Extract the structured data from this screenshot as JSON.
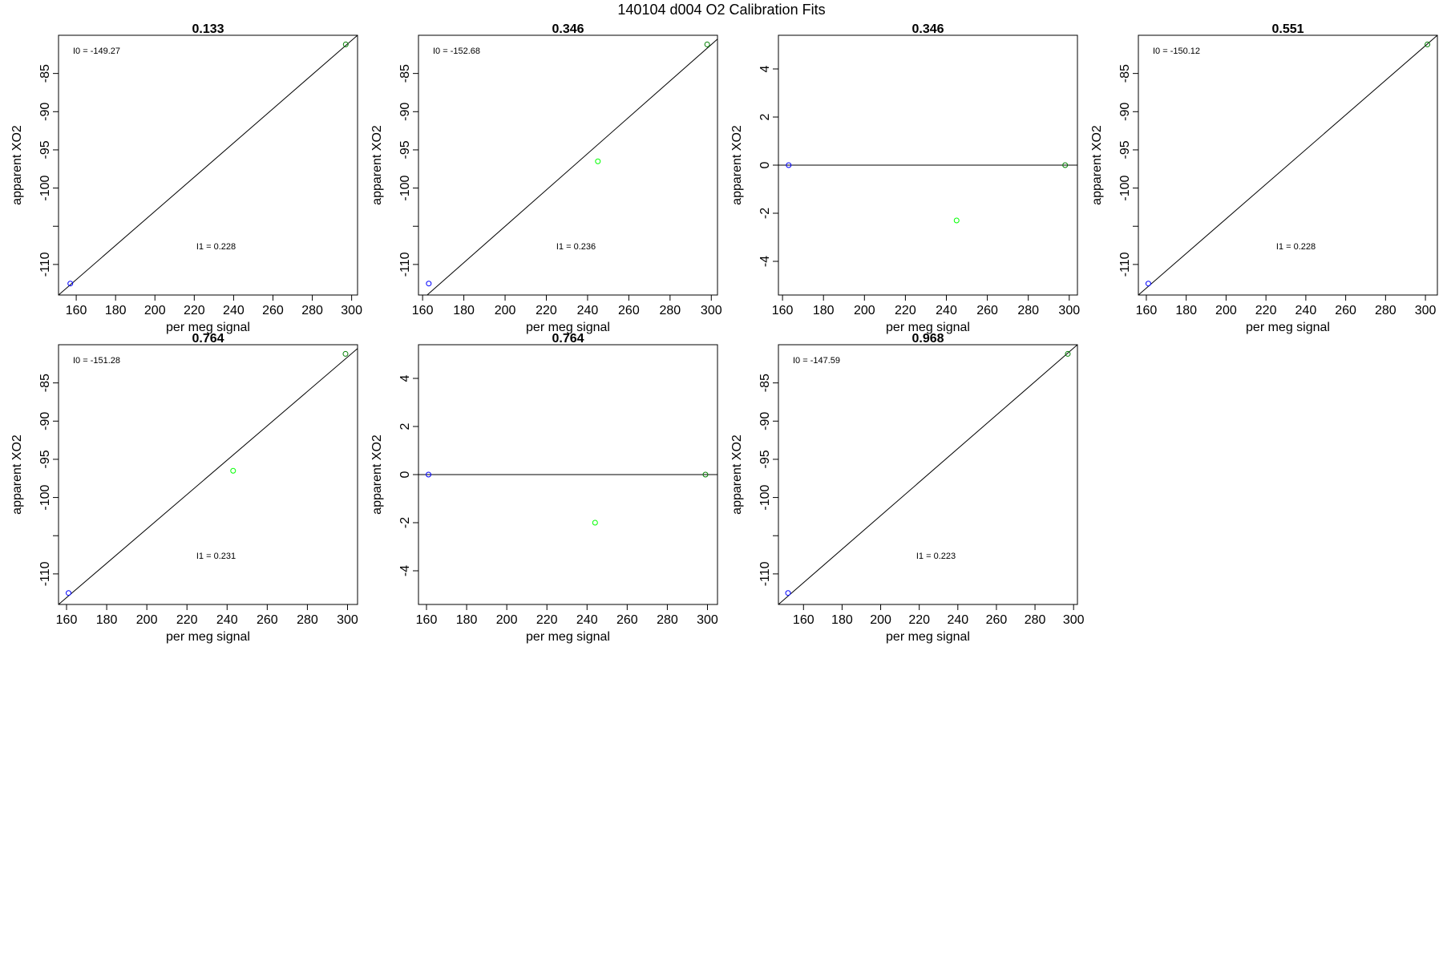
{
  "figure": {
    "title": "140104   d004   O2 Calibration Fits",
    "colors": {
      "line": "#000000",
      "point_blue": "#0000ff",
      "point_green_dark": "#008000",
      "point_green_light": "#00ff00"
    }
  },
  "chart_data": [
    {
      "type": "scatter",
      "title": "0.133",
      "xlabel": "per meg signal",
      "ylabel": "apparent XO2",
      "xlim": [
        151,
        303
      ],
      "ylim": [
        -114,
        -80
      ],
      "xticks": [
        160,
        180,
        200,
        220,
        240,
        260,
        280,
        300
      ],
      "yticks": [
        -85,
        -90,
        -95,
        -100,
        -105,
        -110
      ],
      "yticklabels": [
        "-85",
        "-90",
        "-95",
        "-100",
        "",
        "-110"
      ],
      "points": [
        {
          "x": 157,
          "y": -112.5,
          "color": "#0000ff"
        },
        {
          "x": 297,
          "y": -81.2,
          "color": "#008000"
        }
      ],
      "fit_line": [
        [
          151,
          -114
        ],
        [
          303,
          -80
        ]
      ],
      "annotations": [
        {
          "text": "I0 =  -149.27",
          "position": "top-left"
        },
        {
          "text": "I1 =  0.228",
          "position": "bottom-center"
        }
      ]
    },
    {
      "type": "scatter",
      "title": "0.346",
      "xlabel": "per meg signal",
      "ylabel": "apparent XO2",
      "xlim": [
        158,
        303
      ],
      "ylim": [
        -114,
        -80
      ],
      "xticks": [
        160,
        180,
        200,
        220,
        240,
        260,
        280,
        300
      ],
      "yticks": [
        -85,
        -90,
        -95,
        -100,
        -105,
        -110
      ],
      "yticklabels": [
        "-85",
        "-90",
        "-95",
        "-100",
        "",
        "-110"
      ],
      "points": [
        {
          "x": 163,
          "y": -112.5,
          "color": "#0000ff"
        },
        {
          "x": 245,
          "y": -96.5,
          "color": "#00ff00"
        },
        {
          "x": 298,
          "y": -81.2,
          "color": "#008000"
        }
      ],
      "fit_line": [
        [
          158,
          -115
        ],
        [
          303,
          -80.5
        ]
      ],
      "annotations": [
        {
          "text": "I0 =  -152.68",
          "position": "top-left"
        },
        {
          "text": "I1 =  0.236",
          "position": "bottom-center"
        }
      ]
    },
    {
      "type": "scatter",
      "title": "0.346",
      "xlabel": "per meg signal",
      "ylabel": "apparent XO2",
      "xlim": [
        158,
        304
      ],
      "ylim": [
        -5.4,
        5.4
      ],
      "xticks": [
        160,
        180,
        200,
        220,
        240,
        260,
        280,
        300
      ],
      "yticks": [
        4,
        2,
        0,
        -2,
        -4
      ],
      "yticklabels": [
        "4",
        "2",
        "0",
        "-2",
        "-4"
      ],
      "points": [
        {
          "x": 163,
          "y": 0,
          "color": "#0000ff"
        },
        {
          "x": 245,
          "y": -2.3,
          "color": "#00ff00"
        },
        {
          "x": 298,
          "y": 0,
          "color": "#008000"
        }
      ],
      "fit_line": [
        [
          158,
          0
        ],
        [
          304,
          0
        ]
      ],
      "annotations": []
    },
    {
      "type": "scatter",
      "title": "0.551",
      "xlabel": "per meg signal",
      "ylabel": "apparent XO2",
      "xlim": [
        156,
        306
      ],
      "ylim": [
        -114,
        -80
      ],
      "xticks": [
        160,
        180,
        200,
        220,
        240,
        260,
        280,
        300
      ],
      "yticks": [
        -85,
        -90,
        -95,
        -100,
        -105,
        -110
      ],
      "yticklabels": [
        "-85",
        "-90",
        "-95",
        "-100",
        "",
        "-110"
      ],
      "points": [
        {
          "x": 161,
          "y": -112.5,
          "color": "#0000ff"
        },
        {
          "x": 301,
          "y": -81.2,
          "color": "#008000"
        }
      ],
      "fit_line": [
        [
          156,
          -114
        ],
        [
          306,
          -80
        ]
      ],
      "annotations": [
        {
          "text": "I0 =  -150.12",
          "position": "top-left"
        },
        {
          "text": "I1 =  0.228",
          "position": "bottom-center"
        }
      ]
    },
    {
      "type": "scatter",
      "title": "0.764",
      "xlabel": "per meg signal",
      "ylabel": "apparent XO2",
      "xlim": [
        156,
        305
      ],
      "ylim": [
        -114,
        -80
      ],
      "xticks": [
        160,
        180,
        200,
        220,
        240,
        260,
        280,
        300
      ],
      "yticks": [
        -85,
        -90,
        -95,
        -100,
        -105,
        -110
      ],
      "yticklabels": [
        "-85",
        "-90",
        "-95",
        "-100",
        "",
        "-110"
      ],
      "points": [
        {
          "x": 161,
          "y": -112.5,
          "color": "#0000ff"
        },
        {
          "x": 243,
          "y": -96.5,
          "color": "#00ff00"
        },
        {
          "x": 299,
          "y": -81.2,
          "color": "#008000"
        }
      ],
      "fit_line": [
        [
          156,
          -114
        ],
        [
          305,
          -80.5
        ]
      ],
      "annotations": [
        {
          "text": "I0 =  -151.28",
          "position": "top-left"
        },
        {
          "text": "I1 =  0.231",
          "position": "bottom-center"
        }
      ]
    },
    {
      "type": "scatter",
      "title": "0.764",
      "xlabel": "per meg signal",
      "ylabel": "apparent XO2",
      "xlim": [
        156,
        305
      ],
      "ylim": [
        -5.4,
        5.4
      ],
      "xticks": [
        160,
        180,
        200,
        220,
        240,
        260,
        280,
        300
      ],
      "yticks": [
        4,
        2,
        0,
        -2,
        -4
      ],
      "yticklabels": [
        "4",
        "2",
        "0",
        "-2",
        "-4"
      ],
      "points": [
        {
          "x": 161,
          "y": 0,
          "color": "#0000ff"
        },
        {
          "x": 244,
          "y": -2.0,
          "color": "#00ff00"
        },
        {
          "x": 299,
          "y": 0,
          "color": "#008000"
        }
      ],
      "fit_line": [
        [
          156,
          0
        ],
        [
          305,
          0
        ]
      ],
      "annotations": []
    },
    {
      "type": "scatter",
      "title": "0.968",
      "xlabel": "per meg signal",
      "ylabel": "apparent XO2",
      "xlim": [
        147,
        302
      ],
      "ylim": [
        -114,
        -80
      ],
      "xticks": [
        160,
        180,
        200,
        220,
        240,
        260,
        280,
        300
      ],
      "yticks": [
        -85,
        -90,
        -95,
        -100,
        -105,
        -110
      ],
      "yticklabels": [
        "-85",
        "-90",
        "-95",
        "-100",
        "",
        "-110"
      ],
      "points": [
        {
          "x": 152,
          "y": -112.5,
          "color": "#0000ff"
        },
        {
          "x": 297,
          "y": -81.2,
          "color": "#008000"
        }
      ],
      "fit_line": [
        [
          147,
          -114
        ],
        [
          302,
          -80
        ]
      ],
      "annotations": [
        {
          "text": "I0 =  -147.59",
          "position": "top-left"
        },
        {
          "text": "I1 =  0.223",
          "position": "bottom-center"
        }
      ]
    }
  ]
}
